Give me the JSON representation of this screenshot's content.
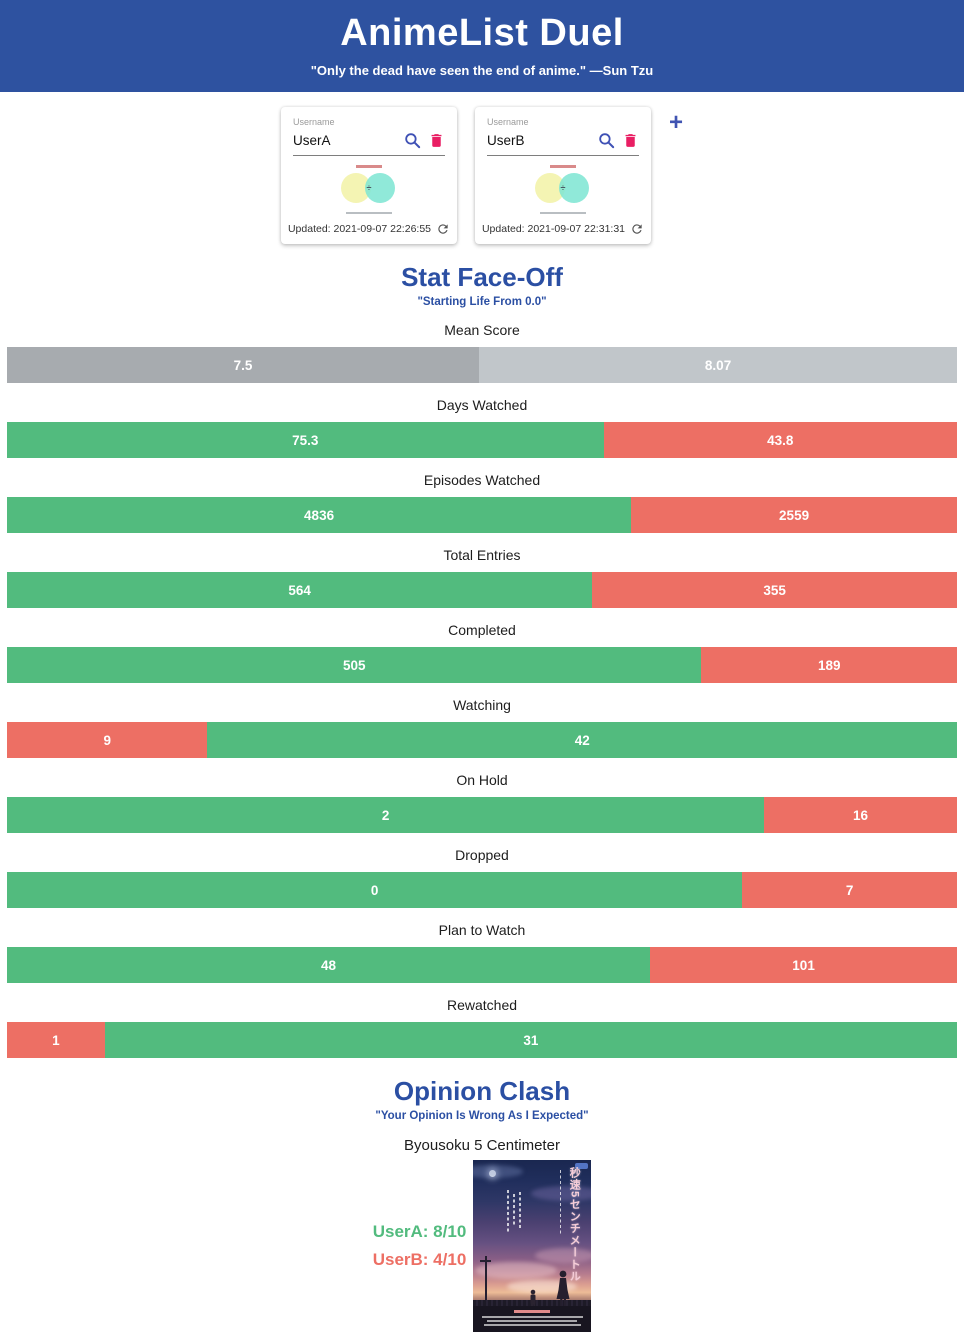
{
  "app": {
    "title": "AnimeList Duel",
    "subtitle": "\"Only the dead have seen the end of anime.\" —Sun Tzu"
  },
  "theme": {
    "header_bg": "#2e52a0",
    "accent_blue": "#2b4fa3",
    "icon_indigo": "#3f51b5",
    "icon_pink": "#e91e63",
    "win_green": "#52bb7e",
    "lose_red": "#ed6f64",
    "neutral_gray_left": "#a7abaf",
    "neutral_gray_right": "#c1c6ca"
  },
  "icons": {
    "add_glyph": "+",
    "divide_glyph": "÷",
    "search": "search-icon",
    "delete": "trash-icon",
    "refresh": "refresh-icon"
  },
  "users": [
    {
      "field_label": "Username",
      "username": "UserA",
      "updated": "Updated: 2021-09-07 22:26:55"
    },
    {
      "field_label": "Username",
      "username": "UserB",
      "updated": "Updated: 2021-09-07 22:31:31"
    }
  ],
  "stat_section": {
    "title": "Stat Face-Off",
    "subtitle": "\"Starting Life From 0.0\""
  },
  "chart_data": {
    "type": "bar",
    "orientation": "horizontal-paired-comparison",
    "legend": "green = winning side, red = losing side, gray = Mean Score (neutral)",
    "categories": [
      "Mean Score",
      "Days Watched",
      "Episodes Watched",
      "Total Entries",
      "Completed",
      "Watching",
      "On Hold",
      "Dropped",
      "Plan to Watch",
      "Rewatched"
    ],
    "series": [
      {
        "name": "UserA",
        "values": [
          7.5,
          75.3,
          4836,
          564,
          505,
          9,
          2,
          0,
          48,
          1
        ]
      },
      {
        "name": "UserB",
        "values": [
          8.07,
          43.8,
          2559,
          355,
          189,
          42,
          16,
          7,
          101,
          31
        ]
      }
    ],
    "rows": [
      {
        "label": "Mean Score",
        "left": {
          "text": "7.5",
          "width_pct": 49.7,
          "color": "#a7abaf"
        },
        "right": {
          "text": "8.07",
          "color": "#c1c6ca"
        }
      },
      {
        "label": "Days Watched",
        "left": {
          "text": "75.3",
          "width_pct": 62.8,
          "color": "#52bb7e"
        },
        "right": {
          "text": "43.8",
          "color": "#ed6f64"
        }
      },
      {
        "label": "Episodes Watched",
        "left": {
          "text": "4836",
          "width_pct": 65.7,
          "color": "#52bb7e"
        },
        "right": {
          "text": "2559",
          "color": "#ed6f64"
        }
      },
      {
        "label": "Total Entries",
        "left": {
          "text": "564",
          "width_pct": 61.6,
          "color": "#52bb7e"
        },
        "right": {
          "text": "355",
          "color": "#ed6f64"
        }
      },
      {
        "label": "Completed",
        "left": {
          "text": "505",
          "width_pct": 73.1,
          "color": "#52bb7e"
        },
        "right": {
          "text": "189",
          "color": "#ed6f64"
        }
      },
      {
        "label": "Watching",
        "left": {
          "text": "9",
          "width_pct": 21.1,
          "color": "#ed6f64"
        },
        "right": {
          "text": "42",
          "color": "#52bb7e"
        }
      },
      {
        "label": "On Hold",
        "left": {
          "text": "2",
          "width_pct": 79.7,
          "color": "#52bb7e"
        },
        "right": {
          "text": "16",
          "color": "#ed6f64"
        }
      },
      {
        "label": "Dropped",
        "left": {
          "text": "0",
          "width_pct": 77.4,
          "color": "#52bb7e"
        },
        "right": {
          "text": "7",
          "color": "#ed6f64"
        }
      },
      {
        "label": "Plan to Watch",
        "left": {
          "text": "48",
          "width_pct": 67.7,
          "color": "#52bb7e"
        },
        "right": {
          "text": "101",
          "color": "#ed6f64"
        }
      },
      {
        "label": "Rewatched",
        "left": {
          "text": "1",
          "width_pct": 10.3,
          "color": "#ed6f64"
        },
        "right": {
          "text": "31",
          "color": "#52bb7e"
        }
      }
    ]
  },
  "opinion_section": {
    "title": "Opinion Clash",
    "subtitle": "\"Your Opinion Is Wrong As I Expected\"",
    "anime_title": "Byousoku 5 Centimeter",
    "ratings": [
      {
        "text": "UserA: 8/10",
        "color": "#52bb7e"
      },
      {
        "text": "UserB: 4/10",
        "color": "#ed6f64"
      }
    ],
    "poster": {
      "vertical_title": "秒速5センチメートル"
    }
  }
}
